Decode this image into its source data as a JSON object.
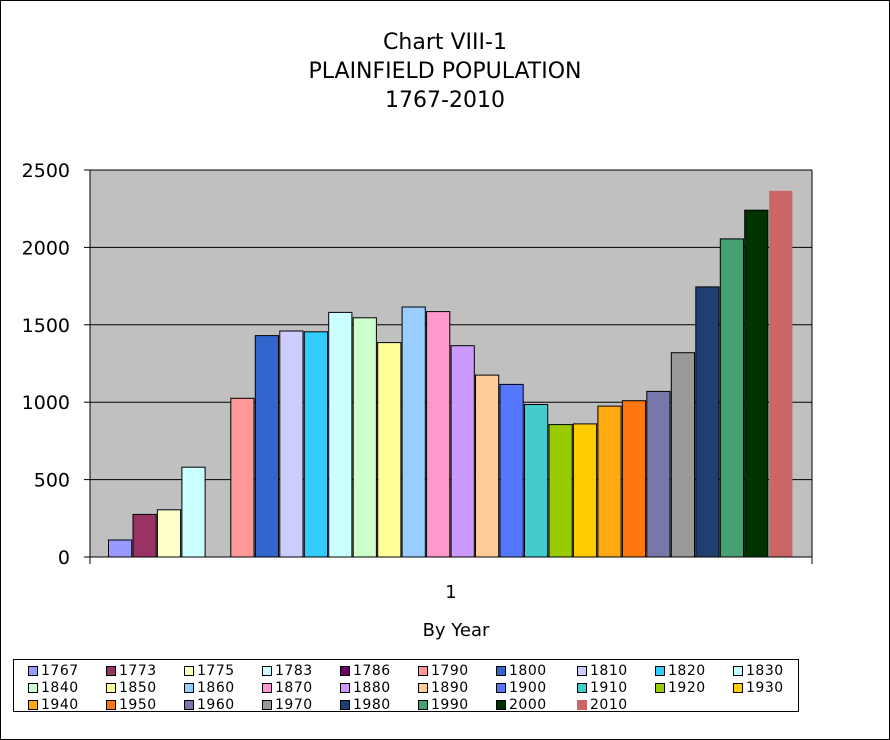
{
  "chart_data": {
    "type": "bar",
    "title_lines": [
      "Chart VIII-1",
      "PLAINFIELD POPULATION",
      "1767-2010"
    ],
    "xlabel": "By Year",
    "ylabel": "",
    "categories": [
      "1"
    ],
    "ylim": [
      0,
      2500
    ],
    "yticks": [
      "0",
      "500",
      "1000",
      "1500",
      "2000",
      "2500"
    ],
    "grid": true,
    "legend_position": "bottom",
    "series": [
      {
        "name": "1767",
        "value": 110,
        "color": "#9999ff"
      },
      {
        "name": "1773",
        "value": 275,
        "color": "#993366"
      },
      {
        "name": "1775",
        "value": 305,
        "color": "#ffffcc"
      },
      {
        "name": "1783",
        "value": 580,
        "color": "#ccffff"
      },
      {
        "name": "1786",
        "value": null,
        "color": "#660066"
      },
      {
        "name": "1790",
        "value": 1025,
        "color": "#ff9999"
      },
      {
        "name": "1800",
        "value": 1430,
        "color": "#3366cc"
      },
      {
        "name": "1810",
        "value": 1460,
        "color": "#ccccff"
      },
      {
        "name": "1820",
        "value": 1455,
        "color": "#33ccff"
      },
      {
        "name": "1830",
        "value": 1580,
        "color": "#ccffff"
      },
      {
        "name": "1840",
        "value": 1545,
        "color": "#ccffcc"
      },
      {
        "name": "1850",
        "value": 1385,
        "color": "#ffff99"
      },
      {
        "name": "1860",
        "value": 1615,
        "color": "#99ccff"
      },
      {
        "name": "1870",
        "value": 1585,
        "color": "#ff99cc"
      },
      {
        "name": "1880",
        "value": 1365,
        "color": "#cc99ff"
      },
      {
        "name": "1890",
        "value": 1175,
        "color": "#ffcc99"
      },
      {
        "name": "1900",
        "value": 1115,
        "color": "#5577ff"
      },
      {
        "name": "1910",
        "value": 985,
        "color": "#44cccc"
      },
      {
        "name": "1920",
        "value": 855,
        "color": "#99cc00"
      },
      {
        "name": "1930",
        "value": 860,
        "color": "#ffcc00"
      },
      {
        "name": "1940",
        "value": 975,
        "color": "#ffaa11"
      },
      {
        "name": "1950",
        "value": 1010,
        "color": "#ff7711"
      },
      {
        "name": "1960",
        "value": 1070,
        "color": "#7777aa"
      },
      {
        "name": "1970",
        "value": 1320,
        "color": "#999999"
      },
      {
        "name": "1980",
        "value": 1745,
        "color": "#1f3f70"
      },
      {
        "name": "1990",
        "value": 2055,
        "color": "#44a070"
      },
      {
        "name": "2000",
        "value": 2240,
        "color": "#003300"
      },
      {
        "name": "2010",
        "value": 2365,
        "color": "#cc6666"
      }
    ]
  },
  "colors": {
    "plot_background": "#c0c0c0",
    "gridline": "#000000"
  }
}
